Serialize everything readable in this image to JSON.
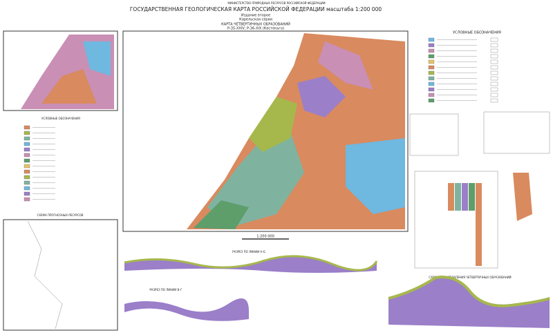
{
  "header": {
    "ministry": "МИНИСТЕРСТВО ПРИРОДНЫХ РЕСУРСОВ РОССИЙСКОЙ ФЕДЕРАЦИИ",
    "title": "ГОСУДАРСТВЕННАЯ ГЕОЛОГИЧЕСКАЯ КАРТА РОССИЙСКОЙ ФЕДЕРАЦИИ масштаба 1:200 000",
    "edition": "Издание второе",
    "series": "Карельская серия",
    "map_title": "КАРТА ЧЕТВЕРТИЧНЫХ ОБРАЗОВАНИЙ",
    "sheets": "Р-35-XXIV; Р-36-XIX (Кестеньга)"
  },
  "panels": {
    "legend_left_title": "УСЛОВНЫЕ ОБОЗНАЧЕНИЯ",
    "legend_right_title": "УСЛОВНЫЕ ОБОЗНАЧЕНИЯ",
    "resources_title": "СХЕМА ПРОГНОЗНЫХ РЕСУРСОВ",
    "scale": "1:200 000",
    "section_ab": "РАЗРЕЗ ПО ЛИНИИ А–Б",
    "section_vg": "РАЗРЕЗ ПО ЛИНИИ В–Г",
    "correlation_title": "СХЕМА СОПОСТАВЛЕНИЯ ЧЕТВЕРТИЧНЫХ ОБРАЗОВАНИЙ"
  }
}
